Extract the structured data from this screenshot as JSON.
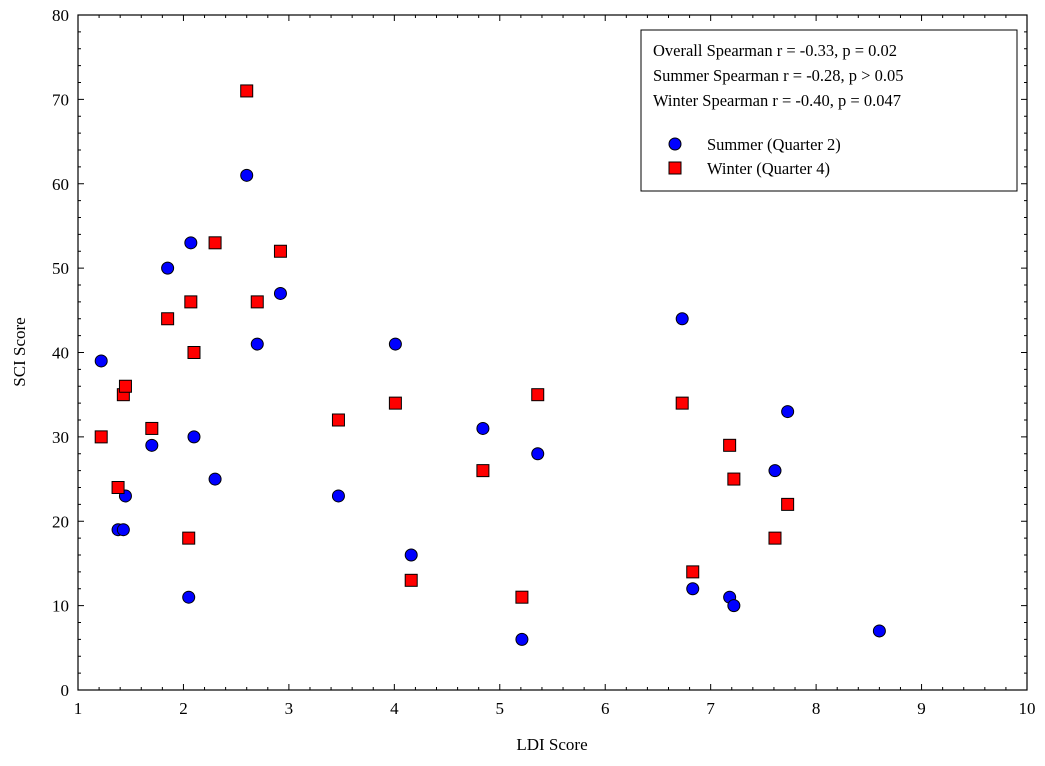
{
  "chart_data": {
    "type": "scatter",
    "xlabel": "LDI Score",
    "ylabel": "SCI Score",
    "xlim": [
      1,
      10
    ],
    "ylim": [
      0,
      80
    ],
    "x_ticks": [
      1,
      2,
      3,
      4,
      5,
      6,
      7,
      8,
      9,
      10
    ],
    "y_ticks": [
      0,
      10,
      20,
      30,
      40,
      50,
      60,
      70,
      80
    ],
    "grid": false,
    "legend_position": "top-right",
    "annotations": [
      "Overall Spearman r = -0.33, p = 0.02",
      "Summer Spearman r = -0.28,  p > 0.05",
      "Winter Spearman r = -0.40, p = 0.047"
    ],
    "series": [
      {
        "name": "Summer (Quarter 2)",
        "marker": "circle",
        "color": "#0000FF",
        "points": [
          [
            1.22,
            39
          ],
          [
            1.38,
            19
          ],
          [
            1.43,
            19
          ],
          [
            1.45,
            23
          ],
          [
            1.7,
            29
          ],
          [
            1.85,
            50
          ],
          [
            2.05,
            11
          ],
          [
            2.07,
            53
          ],
          [
            2.1,
            30
          ],
          [
            2.3,
            25
          ],
          [
            2.6,
            61
          ],
          [
            2.7,
            41
          ],
          [
            2.92,
            47
          ],
          [
            3.47,
            23
          ],
          [
            4.01,
            41
          ],
          [
            4.16,
            16
          ],
          [
            4.84,
            31
          ],
          [
            5.21,
            6
          ],
          [
            5.36,
            28
          ],
          [
            6.73,
            44
          ],
          [
            6.83,
            12
          ],
          [
            7.18,
            11
          ],
          [
            7.22,
            10
          ],
          [
            7.61,
            26
          ],
          [
            7.73,
            33
          ],
          [
            8.6,
            7
          ]
        ]
      },
      {
        "name": "Winter (Quarter 4)",
        "marker": "square",
        "color": "#FF0000",
        "points": [
          [
            1.22,
            30
          ],
          [
            1.38,
            24
          ],
          [
            1.43,
            35
          ],
          [
            1.45,
            36
          ],
          [
            1.7,
            31
          ],
          [
            1.85,
            44
          ],
          [
            2.05,
            18
          ],
          [
            2.07,
            46
          ],
          [
            2.1,
            40
          ],
          [
            2.3,
            53
          ],
          [
            2.6,
            71
          ],
          [
            2.7,
            46
          ],
          [
            2.92,
            52
          ],
          [
            3.47,
            32
          ],
          [
            4.01,
            34
          ],
          [
            4.16,
            13
          ],
          [
            4.84,
            26
          ],
          [
            5.21,
            11
          ],
          [
            5.36,
            35
          ],
          [
            6.73,
            34
          ],
          [
            6.83,
            14
          ],
          [
            7.18,
            29
          ],
          [
            7.22,
            25
          ],
          [
            7.61,
            18
          ],
          [
            7.73,
            22
          ]
        ]
      }
    ]
  }
}
